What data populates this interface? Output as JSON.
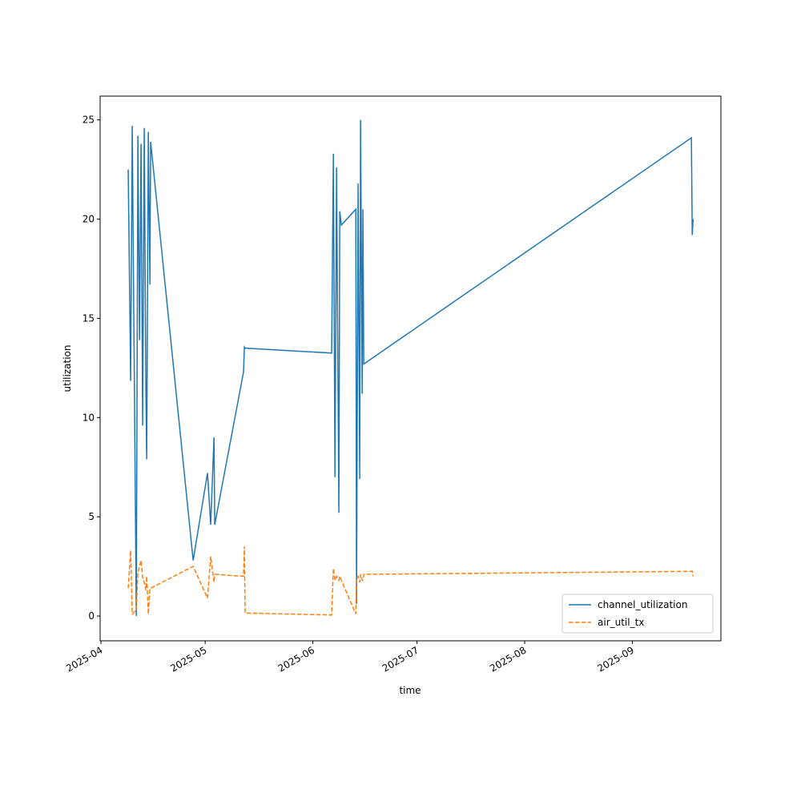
{
  "chart_data": {
    "type": "line",
    "xlabel": "time",
    "ylabel": "utilization",
    "x": [
      "2025-04-08T20:00",
      "2025-04-09T13:00",
      "2025-04-10T00:00",
      "2025-04-11T04:00",
      "2025-04-11T15:00",
      "2025-04-12T02:00",
      "2025-04-12T13:00",
      "2025-04-13T00:00",
      "2025-04-13T11:00",
      "2025-04-13T22:00",
      "2025-04-14T04:00",
      "2025-04-14T15:00",
      "2025-04-15T02:00",
      "2025-04-15T07:00",
      "2025-04-27T13:00",
      "2025-05-01T16:00",
      "2025-05-02T14:00",
      "2025-05-03T13:00",
      "2025-05-03T18:00",
      "2025-05-12T01:00",
      "2025-05-12T07:00",
      "2025-05-12T12:00",
      "2025-06-06T10:00",
      "2025-06-06T22:00",
      "2025-06-07T09:00",
      "2025-06-07T20:00",
      "2025-06-08T12:00",
      "2025-06-08T18:00",
      "2025-06-09T05:00",
      "2025-06-13T09:00",
      "2025-06-13T14:00",
      "2025-06-14T01:00",
      "2025-06-14T12:00",
      "2025-06-14T18:00",
      "2025-06-15T05:00",
      "2025-06-15T10:00",
      "2025-06-15T16:00",
      "2025-09-18T00:00",
      "2025-09-18T06:00",
      "2025-09-18T12:00"
    ],
    "series": [
      {
        "name": "channel_utilization",
        "color": "#1f77b4",
        "dash": "solid",
        "values": [
          22.5,
          11.85,
          24.7,
          0,
          24.2,
          13.9,
          23.8,
          9.6,
          24.6,
          11.6,
          7.9,
          24.4,
          16.7,
          23.9,
          2.8,
          7.2,
          4.6,
          9,
          4.6,
          12.3,
          13.55,
          13.5,
          13.25,
          23.3,
          7,
          22.6,
          5.2,
          20.4,
          19.7,
          20.5,
          0.6,
          21.8,
          6.9,
          25,
          11.2,
          20.5,
          12.7,
          24.1,
          19.2,
          20
        ]
      },
      {
        "name": "air_util_tx",
        "color": "#ff7f0e",
        "dash": "dashed",
        "values": [
          1.4,
          3.3,
          0.1,
          0.3,
          2.2,
          2.5,
          2.8,
          1.9,
          1.7,
          1.3,
          2.0,
          0.1,
          1.4,
          1.4,
          2.5,
          0.9,
          3.0,
          1.7,
          2.1,
          2.0,
          3.5,
          0.15,
          0.05,
          2.4,
          1.8,
          2.0,
          1.8,
          2.0,
          1.8,
          0.1,
          1.9,
          2.0,
          1.7,
          2.1,
          1.8,
          1.8,
          2.1,
          2.25,
          2.25,
          2.0
        ]
      }
    ],
    "xlim": [
      "2025-03-31T18:00",
      "2025-09-26T12:00"
    ],
    "xticks": [
      "2025-04",
      "2025-05",
      "2025-06",
      "2025-07",
      "2025-08",
      "2025-09"
    ],
    "ylim": [
      -1.25,
      26.2
    ],
    "yticks": [
      0,
      5,
      10,
      15,
      20,
      25
    ],
    "legend": "lower right"
  }
}
